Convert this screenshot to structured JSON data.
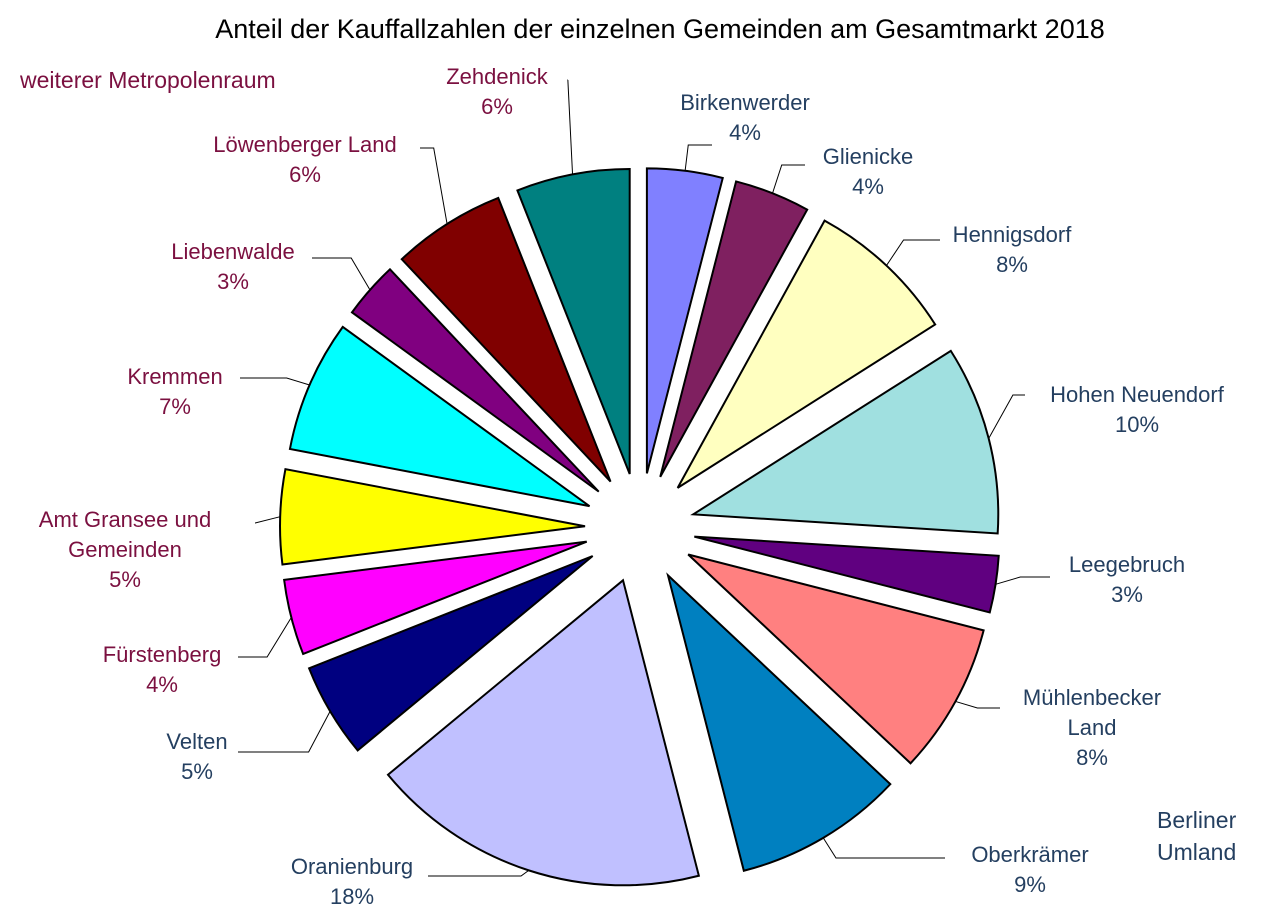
{
  "chart_data": {
    "type": "pie",
    "title": "Anteil der Kauffallzahlen der einzelnen Gemeinden am Gesamtmarkt 2018",
    "annotations": [
      "weiterer Metropolenraum",
      "Berliner Umland"
    ],
    "annotation_colors": [
      "#7b1040",
      "#243f60"
    ],
    "categories": [
      "Birkenwerder",
      "Glienicke",
      "Hennigsdorf",
      "Hohen Neuendorf",
      "Leegebruch",
      "Mühlenbecker Land",
      "Oberkrämer",
      "Oranienburg",
      "Velten",
      "Fürstenberg",
      "Amt Gransee und Gemeinden",
      "Kremmen",
      "Liebenwalde",
      "Löwenberger Land",
      "Zehdenick"
    ],
    "values": [
      4,
      4,
      8,
      10,
      3,
      8,
      9,
      18,
      5,
      4,
      5,
      7,
      3,
      6,
      6
    ],
    "value_labels": [
      "4%",
      "4%",
      "8%",
      "10%",
      "3%",
      "8%",
      "9%",
      "18%",
      "5%",
      "4%",
      "5%",
      "7%",
      "3%",
      "6%",
      "6%"
    ],
    "colors": [
      "#8080ff",
      "#7f2060",
      "#ffffc0",
      "#a0e0e0",
      "#600080",
      "#ff8080",
      "#0080c0",
      "#c0c0ff",
      "#000080",
      "#ff00ff",
      "#ffff00",
      "#00ffff",
      "#800080",
      "#800000",
      "#008080"
    ],
    "label_colors": [
      "#243f60",
      "#243f60",
      "#243f60",
      "#243f60",
      "#243f60",
      "#243f60",
      "#243f60",
      "#243f60",
      "#243f60",
      "#7b1040",
      "#7b1040",
      "#7b1040",
      "#7b1040",
      "#7b1040",
      "#7b1040"
    ]
  }
}
